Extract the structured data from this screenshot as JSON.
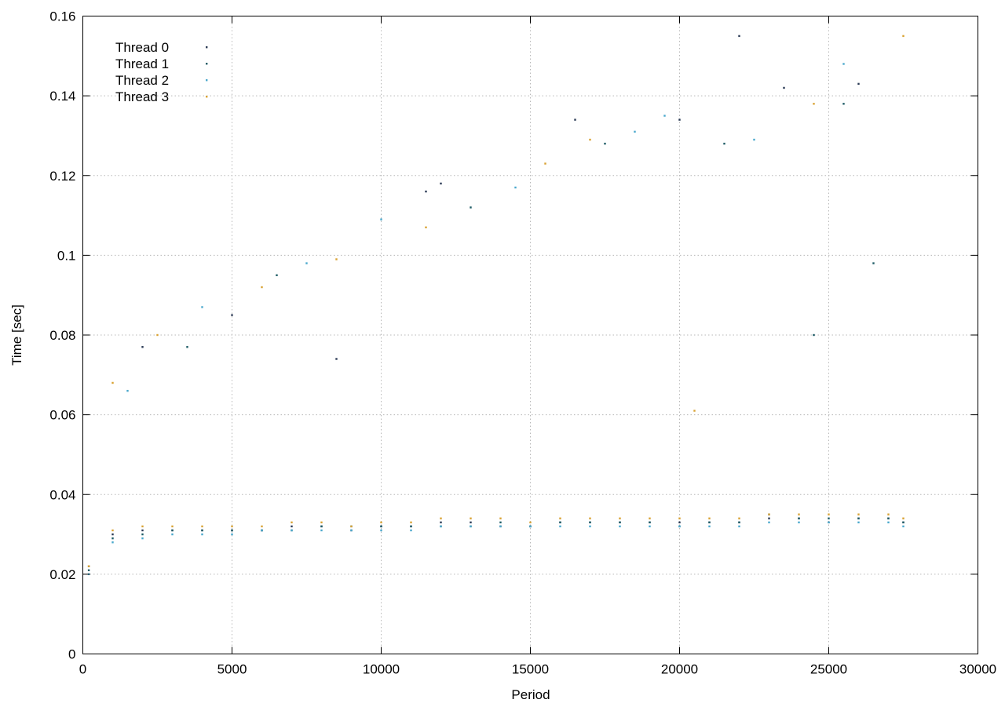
{
  "chart_data": {
    "type": "scatter",
    "title": "",
    "xlabel": "Period",
    "ylabel": "Time [sec]",
    "xlim": [
      0,
      30000
    ],
    "ylim": [
      0,
      0.16
    ],
    "x_ticks": [
      0,
      5000,
      10000,
      15000,
      20000,
      25000,
      30000
    ],
    "y_ticks": [
      0,
      0.02,
      0.04,
      0.06,
      0.08,
      0.1,
      0.12,
      0.14,
      0.16
    ],
    "x_tick_labels": [
      "0",
      "5000",
      "10000",
      "15000",
      "20000",
      "25000",
      "30000"
    ],
    "y_tick_labels": [
      "0",
      "0.02",
      "0.04",
      "0.06",
      "0.08",
      "0.1",
      "0.12",
      "0.14",
      "0.16"
    ],
    "grid": true,
    "legend_position": "top-left",
    "series": [
      {
        "name": "Thread 0",
        "color": "#2b3a55",
        "points": [
          [
            200,
            0.022
          ],
          [
            1000,
            0.03
          ],
          [
            2000,
            0.031
          ],
          [
            3000,
            0.031
          ],
          [
            4000,
            0.031
          ],
          [
            5000,
            0.031
          ],
          [
            6000,
            0.031
          ],
          [
            7000,
            0.032
          ],
          [
            8000,
            0.032
          ],
          [
            9000,
            0.031
          ],
          [
            10000,
            0.032
          ],
          [
            11000,
            0.032
          ],
          [
            12000,
            0.033
          ],
          [
            13000,
            0.033
          ],
          [
            14000,
            0.032
          ],
          [
            15000,
            0.032
          ],
          [
            16000,
            0.033
          ],
          [
            17000,
            0.033
          ],
          [
            18000,
            0.033
          ],
          [
            19000,
            0.033
          ],
          [
            20000,
            0.033
          ],
          [
            21000,
            0.033
          ],
          [
            22000,
            0.033
          ],
          [
            23000,
            0.034
          ],
          [
            24000,
            0.034
          ],
          [
            25000,
            0.033
          ],
          [
            26000,
            0.034
          ],
          [
            27000,
            0.034
          ],
          [
            27500,
            0.033
          ],
          [
            5000,
            0.085
          ],
          [
            12000,
            0.118
          ],
          [
            16500,
            0.134
          ],
          [
            20000,
            0.134
          ],
          [
            22000,
            0.155
          ],
          [
            23500,
            0.142
          ],
          [
            26000,
            0.143
          ],
          [
            2000,
            0.077
          ],
          [
            8500,
            0.074
          ],
          [
            11500,
            0.116
          ]
        ]
      },
      {
        "name": "Thread 1",
        "color": "#1f5c66",
        "points": [
          [
            200,
            0.021
          ],
          [
            1000,
            0.029
          ],
          [
            2000,
            0.03
          ],
          [
            3000,
            0.031
          ],
          [
            4000,
            0.031
          ],
          [
            5000,
            0.031
          ],
          [
            6000,
            0.031
          ],
          [
            7000,
            0.031
          ],
          [
            8000,
            0.032
          ],
          [
            9000,
            0.032
          ],
          [
            10000,
            0.032
          ],
          [
            11000,
            0.032
          ],
          [
            12000,
            0.032
          ],
          [
            13000,
            0.032
          ],
          [
            14000,
            0.033
          ],
          [
            15000,
            0.032
          ],
          [
            16000,
            0.033
          ],
          [
            17000,
            0.033
          ],
          [
            18000,
            0.033
          ],
          [
            19000,
            0.033
          ],
          [
            20000,
            0.032
          ],
          [
            21000,
            0.033
          ],
          [
            22000,
            0.033
          ],
          [
            23000,
            0.035
          ],
          [
            24000,
            0.034
          ],
          [
            25000,
            0.034
          ],
          [
            26000,
            0.034
          ],
          [
            27000,
            0.034
          ],
          [
            27500,
            0.033
          ],
          [
            3500,
            0.077
          ],
          [
            6500,
            0.095
          ],
          [
            13000,
            0.112
          ],
          [
            17500,
            0.128
          ],
          [
            21500,
            0.128
          ],
          [
            25500,
            0.138
          ],
          [
            26500,
            0.098
          ],
          [
            24500,
            0.08
          ]
        ]
      },
      {
        "name": "Thread 2",
        "color": "#4aa8cc",
        "points": [
          [
            200,
            0.02
          ],
          [
            1000,
            0.028
          ],
          [
            2000,
            0.029
          ],
          [
            3000,
            0.03
          ],
          [
            4000,
            0.03
          ],
          [
            5000,
            0.03
          ],
          [
            6000,
            0.031
          ],
          [
            7000,
            0.031
          ],
          [
            8000,
            0.031
          ],
          [
            9000,
            0.031
          ],
          [
            10000,
            0.031
          ],
          [
            11000,
            0.031
          ],
          [
            12000,
            0.032
          ],
          [
            13000,
            0.032
          ],
          [
            14000,
            0.032
          ],
          [
            15000,
            0.032
          ],
          [
            16000,
            0.032
          ],
          [
            17000,
            0.032
          ],
          [
            18000,
            0.032
          ],
          [
            19000,
            0.032
          ],
          [
            20000,
            0.032
          ],
          [
            21000,
            0.032
          ],
          [
            22000,
            0.032
          ],
          [
            23000,
            0.033
          ],
          [
            24000,
            0.033
          ],
          [
            25000,
            0.033
          ],
          [
            26000,
            0.033
          ],
          [
            27000,
            0.033
          ],
          [
            27500,
            0.032
          ],
          [
            1500,
            0.066
          ],
          [
            4000,
            0.087
          ],
          [
            7500,
            0.098
          ],
          [
            10000,
            0.109
          ],
          [
            14500,
            0.117
          ],
          [
            18500,
            0.131
          ],
          [
            19500,
            0.135
          ],
          [
            22500,
            0.129
          ],
          [
            25500,
            0.148
          ]
        ]
      },
      {
        "name": "Thread 3",
        "color": "#d9a233",
        "points": [
          [
            200,
            0.022
          ],
          [
            1000,
            0.031
          ],
          [
            2000,
            0.032
          ],
          [
            3000,
            0.032
          ],
          [
            4000,
            0.032
          ],
          [
            5000,
            0.032
          ],
          [
            6000,
            0.032
          ],
          [
            7000,
            0.033
          ],
          [
            8000,
            0.033
          ],
          [
            9000,
            0.032
          ],
          [
            10000,
            0.033
          ],
          [
            11000,
            0.033
          ],
          [
            12000,
            0.034
          ],
          [
            13000,
            0.034
          ],
          [
            14000,
            0.034
          ],
          [
            15000,
            0.033
          ],
          [
            16000,
            0.034
          ],
          [
            17000,
            0.034
          ],
          [
            18000,
            0.034
          ],
          [
            19000,
            0.034
          ],
          [
            20000,
            0.034
          ],
          [
            21000,
            0.034
          ],
          [
            22000,
            0.034
          ],
          [
            23000,
            0.035
          ],
          [
            24000,
            0.035
          ],
          [
            25000,
            0.035
          ],
          [
            26000,
            0.035
          ],
          [
            27000,
            0.035
          ],
          [
            27500,
            0.034
          ],
          [
            1000,
            0.068
          ],
          [
            2500,
            0.08
          ],
          [
            6000,
            0.092
          ],
          [
            8500,
            0.099
          ],
          [
            11500,
            0.107
          ],
          [
            15500,
            0.123
          ],
          [
            17000,
            0.129
          ],
          [
            20500,
            0.061
          ],
          [
            24500,
            0.138
          ],
          [
            27500,
            0.155
          ]
        ]
      }
    ]
  }
}
